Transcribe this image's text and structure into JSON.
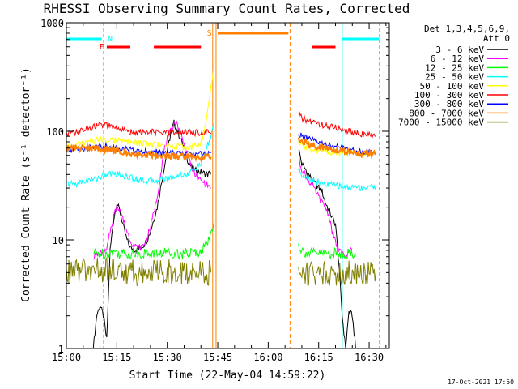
{
  "chart_data": {
    "type": "line",
    "title": "RHESSI Observing Summary Count Rates, Corrected",
    "xlabel": "Start Time (22-May-04 14:59:22)",
    "ylabel": "Corrected Count Rate (s⁻¹ detector⁻¹)",
    "yscale": "log",
    "ylim": [
      1,
      1000
    ],
    "xlim_minutes": [
      0,
      96
    ],
    "x_ticks": [
      {
        "t": 0,
        "label": "15:00"
      },
      {
        "t": 15,
        "label": "15:15"
      },
      {
        "t": 30,
        "label": "15:30"
      },
      {
        "t": 45,
        "label": "15:45"
      },
      {
        "t": 60,
        "label": "16:00"
      },
      {
        "t": 75,
        "label": "16:15"
      },
      {
        "t": 90,
        "label": "16:30"
      }
    ],
    "y_tick_labels": [
      {
        "v": 1,
        "label": "1"
      },
      {
        "v": 10,
        "label": "10"
      },
      {
        "v": 100,
        "label": "100"
      },
      {
        "v": 1000,
        "label": "1000"
      }
    ],
    "legend_header": [
      "Det 1,3,4,5,6,9,",
      "Att 0"
    ],
    "legend_placement": "right",
    "series": [
      {
        "name": "3 - 6 keV",
        "color": "#000000",
        "seg1": [
          [
            8,
            1
          ],
          [
            9,
            2
          ],
          [
            10,
            2.5
          ],
          [
            11,
            2
          ],
          [
            12,
            1.2
          ],
          [
            13,
            8
          ],
          [
            14,
            15
          ],
          [
            15,
            22
          ],
          [
            16,
            18
          ],
          [
            17,
            13
          ],
          [
            18,
            10
          ],
          [
            19,
            8.5
          ],
          [
            20,
            8.2
          ],
          [
            21,
            8
          ],
          [
            22,
            8.5
          ],
          [
            23,
            9
          ],
          [
            24,
            10
          ],
          [
            25,
            12
          ],
          [
            27,
            20
          ],
          [
            29,
            45
          ],
          [
            30,
            65
          ],
          [
            31,
            95
          ],
          [
            32,
            120
          ],
          [
            33,
            100
          ],
          [
            34,
            85
          ],
          [
            35,
            70
          ],
          [
            36,
            55
          ],
          [
            37,
            48
          ],
          [
            38,
            44
          ],
          [
            40,
            42
          ],
          [
            42,
            40
          ],
          [
            43,
            42
          ]
        ],
        "seg2": [
          [
            69,
            70
          ],
          [
            70,
            50
          ],
          [
            71,
            45
          ],
          [
            72,
            40
          ],
          [
            73,
            36
          ],
          [
            74,
            33
          ],
          [
            75,
            30
          ],
          [
            76,
            28
          ],
          [
            77,
            22
          ],
          [
            78,
            19
          ],
          [
            79,
            16
          ],
          [
            80,
            14
          ],
          [
            81,
            6
          ],
          [
            82,
            2
          ],
          [
            83,
            1
          ],
          [
            84,
            2.2
          ],
          [
            85,
            2
          ],
          [
            86,
            1
          ]
        ]
      },
      {
        "name": "6 - 12 keV",
        "color": "#ff00ff",
        "seg1": [
          [
            8,
            7
          ],
          [
            9,
            7.2
          ],
          [
            10,
            7.5
          ],
          [
            11,
            7.5
          ],
          [
            12,
            8
          ],
          [
            13,
            12
          ],
          [
            14,
            16
          ],
          [
            15,
            21
          ],
          [
            16,
            19
          ],
          [
            17,
            15
          ],
          [
            18,
            12
          ],
          [
            19,
            10
          ],
          [
            20,
            9
          ],
          [
            21,
            8.5
          ],
          [
            22,
            8.5
          ],
          [
            23,
            9
          ],
          [
            24,
            10.5
          ],
          [
            25,
            13
          ],
          [
            27,
            25
          ],
          [
            28,
            40
          ],
          [
            29,
            65
          ],
          [
            30,
            85
          ],
          [
            31,
            100
          ],
          [
            32,
            120
          ],
          [
            33,
            115
          ],
          [
            34,
            95
          ],
          [
            35,
            75
          ],
          [
            36,
            60
          ],
          [
            37,
            48
          ],
          [
            38,
            42
          ],
          [
            40,
            35
          ],
          [
            42,
            32
          ],
          [
            43,
            30
          ]
        ],
        "seg2": [
          [
            69,
            55
          ],
          [
            70,
            45
          ],
          [
            71,
            40
          ],
          [
            72,
            35
          ],
          [
            73,
            32
          ],
          [
            74,
            28
          ],
          [
            75,
            25
          ],
          [
            76,
            22
          ],
          [
            77,
            20
          ],
          [
            78,
            17
          ],
          [
            79,
            12
          ],
          [
            80,
            9.5
          ],
          [
            81,
            8
          ],
          [
            82,
            7.5
          ],
          [
            83,
            7
          ],
          [
            84,
            8
          ],
          [
            85,
            8
          ]
        ]
      },
      {
        "name": "12 - 25 keV",
        "color": "#00ff00",
        "seg1": [
          [
            8,
            7.5
          ],
          [
            10,
            7.5
          ],
          [
            12,
            7.5
          ],
          [
            14,
            7.8
          ],
          [
            16,
            7.5
          ],
          [
            18,
            7.5
          ],
          [
            20,
            7.5
          ],
          [
            22,
            7.5
          ],
          [
            24,
            7.5
          ],
          [
            26,
            7.5
          ],
          [
            28,
            7.5
          ],
          [
            30,
            7.8
          ],
          [
            32,
            7.6
          ],
          [
            34,
            7.5
          ],
          [
            36,
            7.5
          ],
          [
            38,
            7.6
          ],
          [
            40,
            8
          ],
          [
            42,
            9.5
          ],
          [
            43,
            12
          ],
          [
            44,
            15
          ]
        ],
        "seg2": [
          [
            69,
            9
          ],
          [
            70,
            8
          ],
          [
            72,
            7.5
          ],
          [
            74,
            7.5
          ],
          [
            76,
            7.5
          ],
          [
            78,
            7.5
          ],
          [
            80,
            7.5
          ],
          [
            82,
            7.5
          ],
          [
            84,
            7.5
          ],
          [
            86,
            7.5
          ]
        ]
      },
      {
        "name": "25 - 50 keV",
        "color": "#00ffff",
        "seg1": [
          [
            0,
            33
          ],
          [
            3,
            33
          ],
          [
            6,
            35
          ],
          [
            9,
            37
          ],
          [
            12,
            40
          ],
          [
            14,
            41
          ],
          [
            16,
            40
          ],
          [
            18,
            38
          ],
          [
            20,
            37
          ],
          [
            22,
            36
          ],
          [
            24,
            35
          ],
          [
            26,
            35
          ],
          [
            28,
            36
          ],
          [
            30,
            37
          ],
          [
            32,
            38
          ],
          [
            34,
            40
          ],
          [
            36,
            40
          ],
          [
            38,
            45
          ],
          [
            40,
            50
          ],
          [
            41,
            60
          ],
          [
            42,
            75
          ],
          [
            43,
            90
          ],
          [
            44,
            120
          ]
        ],
        "seg2": [
          [
            69,
            45
          ],
          [
            70,
            40
          ],
          [
            72,
            38
          ],
          [
            74,
            35
          ],
          [
            76,
            33
          ],
          [
            78,
            32
          ],
          [
            80,
            32
          ],
          [
            82,
            31
          ],
          [
            84,
            30
          ],
          [
            86,
            31
          ],
          [
            88,
            30
          ],
          [
            90,
            31
          ],
          [
            92,
            31
          ]
        ]
      },
      {
        "name": "50 - 100 keV",
        "color": "#ffff00",
        "seg1": [
          [
            0,
            72
          ],
          [
            3,
            75
          ],
          [
            6,
            80
          ],
          [
            9,
            83
          ],
          [
            12,
            85
          ],
          [
            15,
            82
          ],
          [
            18,
            80
          ],
          [
            21,
            78
          ],
          [
            24,
            76
          ],
          [
            27,
            75
          ],
          [
            30,
            73
          ],
          [
            33,
            72
          ],
          [
            36,
            71
          ],
          [
            38,
            72
          ],
          [
            40,
            80
          ],
          [
            41,
            100
          ],
          [
            42,
            150
          ],
          [
            43,
            250
          ],
          [
            44,
            450
          ]
        ],
        "seg2": [
          [
            69,
            75
          ],
          [
            72,
            70
          ],
          [
            75,
            67
          ],
          [
            78,
            65
          ],
          [
            81,
            64
          ],
          [
            84,
            64
          ],
          [
            87,
            63
          ],
          [
            90,
            63
          ],
          [
            92,
            63
          ]
        ]
      },
      {
        "name": "100 - 300 keV",
        "color": "#ff0000",
        "seg1": [
          [
            0,
            95
          ],
          [
            2,
            97
          ],
          [
            4,
            100
          ],
          [
            6,
            105
          ],
          [
            8,
            110
          ],
          [
            10,
            115
          ],
          [
            12,
            113
          ],
          [
            14,
            108
          ],
          [
            16,
            104
          ],
          [
            18,
            100
          ],
          [
            20,
            99
          ],
          [
            22,
            98
          ],
          [
            24,
            98
          ],
          [
            26,
            98
          ],
          [
            28,
            97
          ],
          [
            30,
            97
          ],
          [
            32,
            98
          ],
          [
            34,
            97
          ],
          [
            36,
            98
          ],
          [
            38,
            97
          ],
          [
            40,
            98
          ],
          [
            42,
            100
          ],
          [
            43,
            95
          ]
        ],
        "seg2": [
          [
            69,
            150
          ],
          [
            70,
            130
          ],
          [
            72,
            125
          ],
          [
            74,
            120
          ],
          [
            76,
            115
          ],
          [
            78,
            110
          ],
          [
            80,
            108
          ],
          [
            82,
            105
          ],
          [
            84,
            100
          ],
          [
            86,
            97
          ],
          [
            88,
            95
          ],
          [
            90,
            92
          ],
          [
            92,
            90
          ]
        ]
      },
      {
        "name": "300 - 800 keV",
        "color": "#0000ff",
        "seg1": [
          [
            0,
            67
          ],
          [
            3,
            68
          ],
          [
            6,
            70
          ],
          [
            9,
            72
          ],
          [
            12,
            73
          ],
          [
            15,
            71
          ],
          [
            18,
            68
          ],
          [
            21,
            66
          ],
          [
            24,
            65
          ],
          [
            27,
            64
          ],
          [
            30,
            63
          ],
          [
            33,
            63
          ],
          [
            36,
            62
          ],
          [
            39,
            62
          ],
          [
            41,
            63
          ],
          [
            43,
            64
          ]
        ],
        "seg2": [
          [
            69,
            95
          ],
          [
            70,
            90
          ],
          [
            72,
            85
          ],
          [
            74,
            80
          ],
          [
            76,
            77
          ],
          [
            78,
            75
          ],
          [
            80,
            72
          ],
          [
            82,
            70
          ],
          [
            84,
            68
          ],
          [
            86,
            66
          ],
          [
            88,
            65
          ],
          [
            90,
            64
          ],
          [
            92,
            63
          ]
        ]
      },
      {
        "name": "800 - 7000 keV",
        "color": "#ff8000",
        "seg1": [
          [
            0,
            70
          ],
          [
            3,
            70
          ],
          [
            6,
            70
          ],
          [
            9,
            70
          ],
          [
            12,
            68
          ],
          [
            15,
            66
          ],
          [
            18,
            64
          ],
          [
            21,
            62
          ],
          [
            24,
            61
          ],
          [
            27,
            60
          ],
          [
            30,
            59
          ],
          [
            33,
            58
          ],
          [
            36,
            58
          ],
          [
            39,
            58
          ],
          [
            42,
            58
          ],
          [
            43,
            58
          ]
        ],
        "seg2": [
          [
            69,
            85
          ],
          [
            70,
            80
          ],
          [
            72,
            76
          ],
          [
            74,
            73
          ],
          [
            76,
            71
          ],
          [
            78,
            69
          ],
          [
            80,
            67
          ],
          [
            82,
            66
          ],
          [
            84,
            64
          ],
          [
            86,
            63
          ],
          [
            88,
            62
          ],
          [
            90,
            62
          ],
          [
            92,
            61
          ]
        ]
      },
      {
        "name": "7000 - 15000 keV",
        "color": "#808000",
        "seg1": [
          [
            0,
            5
          ],
          [
            4,
            5.2
          ],
          [
            8,
            5.3
          ],
          [
            12,
            5.2
          ],
          [
            16,
            5.1
          ],
          [
            20,
            5
          ],
          [
            24,
            5
          ],
          [
            28,
            5.1
          ],
          [
            32,
            5
          ],
          [
            36,
            5
          ],
          [
            40,
            5
          ],
          [
            43,
            5
          ]
        ],
        "seg2": [
          [
            69,
            5
          ],
          [
            72,
            5
          ],
          [
            76,
            5
          ],
          [
            80,
            5
          ],
          [
            84,
            5
          ],
          [
            88,
            5
          ],
          [
            92,
            5
          ]
        ]
      }
    ],
    "annotations": {
      "state_bar_labels": [
        "N",
        "F",
        "S"
      ],
      "night_color": "#00ffff",
      "flare_color": "#ff0000",
      "saa_color": "#ff8000"
    }
  },
  "footer": {
    "timestamp": "17-Oct-2021 17:50"
  }
}
